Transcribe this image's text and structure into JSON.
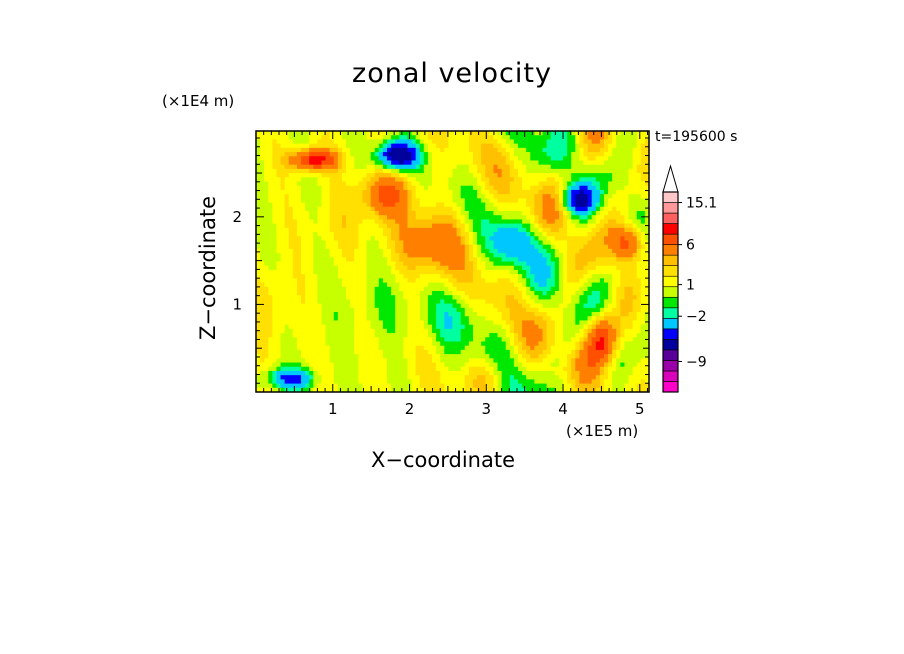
{
  "chart_data": {
    "type": "heatmap",
    "title": "zonal velocity",
    "xlabel": "X−coordinate",
    "ylabel": "Z−coordinate",
    "x_unit": "(×1E5 m)",
    "z_unit": "(×1E4 m)",
    "time_label": "t=195600 s",
    "xlim": [
      0,
      5.12
    ],
    "ylim": [
      0,
      2.98
    ],
    "x_ticks": [
      1,
      2,
      3,
      4,
      5
    ],
    "y_ticks": [
      1,
      2
    ],
    "x_tick_labels": [
      "1",
      "2",
      "3",
      "4",
      "5"
    ],
    "y_tick_labels": [
      "1",
      "2"
    ],
    "colorbar": {
      "colors": [
        "#ff00c8",
        "#d800b8",
        "#9a00a8",
        "#5a009a",
        "#00009c",
        "#0000ff",
        "#00c8ff",
        "#00ffa0",
        "#00e800",
        "#c8ff00",
        "#ffff00",
        "#ffe000",
        "#ffc000",
        "#ff8000",
        "#ff5000",
        "#ff0000",
        "#ff6060",
        "#ff9898",
        "#ffc8c8",
        "#ffffff"
      ],
      "labels": [
        {
          "text": "15.1",
          "level": 15.1
        },
        {
          "text": "6",
          "level": 6
        },
        {
          "text": "1",
          "level": 1
        },
        {
          "text": "−2",
          "level": -2
        },
        {
          "text": "−9",
          "level": -9
        }
      ],
      "extend": "max"
    },
    "features": [
      {
        "x": 0.75,
        "z": 2.65,
        "sx": 0.3,
        "sz": 0.12,
        "v": 8
      },
      {
        "x": 1.85,
        "z": 2.7,
        "sx": 0.25,
        "sz": 0.15,
        "v": -10
      },
      {
        "x": 1.7,
        "z": 2.25,
        "sx": 0.35,
        "sz": 0.25,
        "v": 5
      },
      {
        "x": 2.3,
        "z": 1.7,
        "sx": 0.45,
        "sz": 0.35,
        "v": 4
      },
      {
        "x": 3.35,
        "z": 1.7,
        "sx": 0.28,
        "sz": 0.25,
        "v": -4
      },
      {
        "x": 1.55,
        "z": 0.9,
        "sx": 0.55,
        "sz": 0.4,
        "v": -1
      },
      {
        "x": 1.1,
        "z": 1.9,
        "sx": 0.45,
        "sz": 0.3,
        "v": 1
      },
      {
        "x": 2.6,
        "z": 0.85,
        "sx": 0.3,
        "sz": 0.3,
        "v": -2
      },
      {
        "x": 4.2,
        "z": 2.2,
        "sx": 0.2,
        "sz": 0.15,
        "v": -7
      },
      {
        "x": 4.85,
        "z": 1.7,
        "sx": 0.2,
        "sz": 0.2,
        "v": 6
      },
      {
        "x": 0.2,
        "z": 1.0,
        "sx": 0.25,
        "sz": 0.4,
        "v": 1.5
      },
      {
        "x": 0.45,
        "z": 0.15,
        "sx": 0.3,
        "sz": 0.12,
        "v": -6
      },
      {
        "x": 3.0,
        "z": 0.2,
        "sx": 0.25,
        "sz": 0.2,
        "v": 2
      },
      {
        "x": 4.5,
        "z": 0.6,
        "sx": 0.2,
        "sz": 0.3,
        "v": 7
      }
    ]
  }
}
